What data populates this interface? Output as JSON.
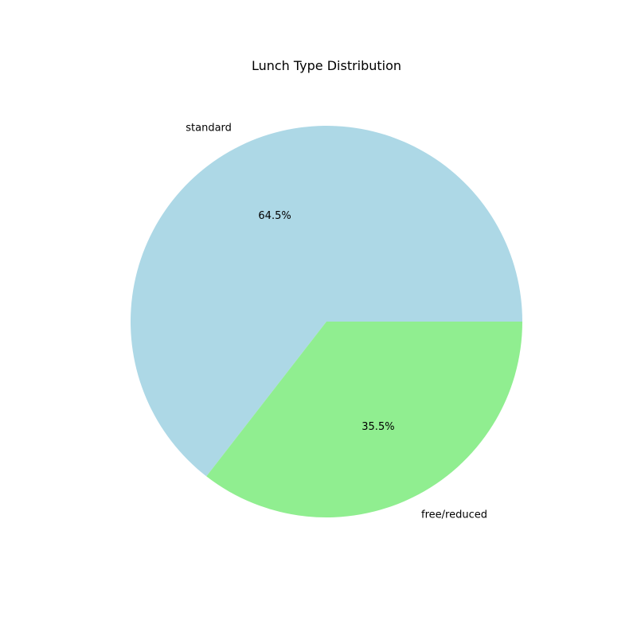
{
  "chart_data": {
    "type": "pie",
    "title": "Lunch Type Distribution",
    "categories": [
      "standard",
      "free/reduced"
    ],
    "values": [
      64.5,
      35.5
    ],
    "percent_labels": [
      "64.5%",
      "35.5%"
    ],
    "colors": [
      "#add8e6",
      "#90ee90"
    ],
    "start_angle": "0 degrees (east)",
    "direction": "counterclockwise",
    "legend": "none"
  }
}
